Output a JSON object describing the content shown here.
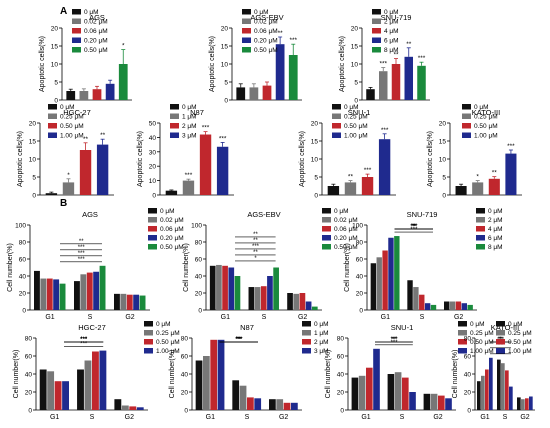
{
  "panels": {
    "A": "A",
    "B": "B"
  },
  "colors": [
    "#111111",
    "#777777",
    "#c0272d",
    "#1f2a8e",
    "#1a8a3c"
  ],
  "chart_data": [
    {
      "type": "bar",
      "id": "A-AGS",
      "title": "AGS",
      "ylabel": "Apoptotic cells(%)",
      "ylim": [
        0,
        20
      ],
      "yticks": [
        0,
        5,
        10,
        15,
        20
      ],
      "legend": [
        "0 μM",
        "0.02 μM",
        "0.06 μM",
        "0.20 μM",
        "0.50 μM"
      ],
      "legend_position": "left",
      "values": [
        2.5,
        2.5,
        3,
        4.5,
        10
      ],
      "errors": [
        0.5,
        0.6,
        0.8,
        1,
        4
      ],
      "sig": [
        "",
        "",
        "",
        "",
        "*"
      ]
    },
    {
      "type": "bar",
      "id": "A-AGS-EBV",
      "title": "AGS-EBV",
      "ylabel": "Apoptotic cells(%)",
      "ylim": [
        0,
        20
      ],
      "yticks": [
        0,
        5,
        10,
        15,
        20
      ],
      "legend": [
        "0 μM",
        "0.02 μM",
        "0.06 μM",
        "0.20 μM",
        "0.50 μM"
      ],
      "legend_position": "left",
      "values": [
        3.5,
        3.5,
        4,
        15.5,
        12.5
      ],
      "errors": [
        1,
        1,
        1,
        2,
        3
      ],
      "sig": [
        "",
        "",
        "",
        "**",
        "***"
      ]
    },
    {
      "type": "bar",
      "id": "A-SNU-719",
      "title": "SNU-719",
      "ylabel": "Apoptotic cells(%)",
      "ylim": [
        0,
        20
      ],
      "yticks": [
        0,
        5,
        10,
        15,
        20
      ],
      "legend": [
        "0 μM",
        "2 μM",
        "4 μM",
        "6 μM",
        "8 μM"
      ],
      "legend_position": "left",
      "values": [
        3,
        8,
        10,
        12,
        9.5
      ],
      "errors": [
        0.5,
        1,
        1.5,
        2.5,
        1
      ],
      "sig": [
        "",
        "***",
        "**",
        "**",
        "***"
      ]
    },
    {
      "type": "bar",
      "id": "A-HGC-27",
      "title": "HGC-27",
      "ylabel": "Apoptotic cells(%)",
      "ylim": [
        0,
        20
      ],
      "yticks": [
        0,
        5,
        10,
        15,
        20
      ],
      "legend": [
        "0 μM",
        "0.25 μM",
        "0.50 μM",
        "1.00 μM"
      ],
      "legend_position": "left",
      "values": [
        0.5,
        3.5,
        12.5,
        14
      ],
      "errors": [
        0.3,
        1,
        2,
        1.5
      ],
      "sig": [
        "",
        "*",
        "**",
        "**"
      ]
    },
    {
      "type": "bar",
      "id": "A-N87",
      "title": "N87",
      "ylabel": "Apoptotic cells(%)",
      "ylim": [
        0,
        50
      ],
      "yticks": [
        0,
        10,
        20,
        30,
        40,
        50
      ],
      "legend": [
        "0 μM",
        "1 μM",
        "2 μM",
        "3 μM"
      ],
      "legend_position": "left",
      "values": [
        3,
        10,
        42,
        33.5
      ],
      "errors": [
        0.5,
        1,
        2,
        3
      ],
      "sig": [
        "",
        "***",
        "***",
        "***"
      ]
    },
    {
      "type": "bar",
      "id": "A-SNU-1",
      "title": "SNU-1",
      "ylabel": "Apoptotic cells(%)",
      "ylim": [
        0,
        20
      ],
      "yticks": [
        0,
        5,
        10,
        15,
        20
      ],
      "legend": [
        "0 μM",
        "0.25 μM",
        "0.50 μM",
        "1.00 μM"
      ],
      "legend_position": "left",
      "values": [
        2.5,
        3.5,
        5,
        15.5
      ],
      "errors": [
        0.5,
        0.5,
        0.8,
        1.5
      ],
      "sig": [
        "",
        "**",
        "***",
        "***"
      ]
    },
    {
      "type": "bar",
      "id": "A-KATO-III",
      "title": "KATO-III",
      "ylabel": "Apoptotic cells(%)",
      "ylim": [
        0,
        20
      ],
      "yticks": [
        0,
        5,
        10,
        15,
        20
      ],
      "legend": [
        "0 μM",
        "0.25 μM",
        "0.50 μM",
        "1.00 μM"
      ],
      "legend_position": "left",
      "values": [
        2.5,
        3.5,
        4.5,
        11.5
      ],
      "errors": [
        0.5,
        0.5,
        0.6,
        1
      ],
      "sig": [
        "",
        "*",
        "**",
        "***"
      ]
    },
    {
      "type": "bar",
      "id": "B-AGS",
      "title": "AGS",
      "ylabel": "Cell number(%)",
      "ylim": [
        0,
        100
      ],
      "yticks": [
        0,
        20,
        40,
        60,
        80,
        100
      ],
      "categories": [
        "G1",
        "S",
        "G2"
      ],
      "legend": [
        "0 μM",
        "0.02 μM",
        "0.06 μM",
        "0.20 μM",
        "0.50 μM"
      ],
      "legend_position": "right",
      "values": [
        [
          46,
          37,
          37,
          36,
          31
        ],
        [
          34,
          42,
          44,
          45,
          52
        ],
        [
          19,
          19,
          18,
          18,
          17
        ]
      ],
      "sig_text": [
        "***",
        "***",
        "***",
        "**"
      ]
    },
    {
      "type": "bar",
      "id": "B-AGS-EBV",
      "title": "AGS-EBV",
      "ylabel": "Cell number(%)",
      "ylim": [
        0,
        100
      ],
      "yticks": [
        0,
        20,
        40,
        60,
        80,
        100
      ],
      "categories": [
        "G1",
        "S",
        "G2"
      ],
      "legend": [
        "0 μM",
        "0.02 μM",
        "0.06 μM",
        "0.20 μM",
        "0.50 μM"
      ],
      "legend_position": "right",
      "values": [
        [
          52,
          53,
          52,
          50,
          40
        ],
        [
          27,
          27,
          28,
          40,
          50
        ],
        [
          20,
          19,
          20,
          10,
          4
        ]
      ],
      "sig_text": [
        "*",
        "**",
        "***",
        "**",
        "**"
      ]
    },
    {
      "type": "bar",
      "id": "B-SNU-719",
      "title": "SNU-719",
      "ylabel": "Cell number(%)",
      "ylim": [
        0,
        100
      ],
      "yticks": [
        0,
        20,
        40,
        60,
        80,
        100
      ],
      "categories": [
        "G1",
        "S",
        "G2"
      ],
      "legend": [
        "0 μM",
        "2 μM",
        "4 μM",
        "6 μM",
        "8 μM"
      ],
      "legend_position": "right",
      "values": [
        [
          55,
          62,
          70,
          85,
          87
        ],
        [
          35,
          27,
          18,
          8,
          6
        ],
        [
          10,
          10,
          10,
          8,
          6
        ]
      ],
      "sig_text": [
        "***",
        "***",
        "**",
        "*",
        "***",
        "**",
        "*"
      ]
    },
    {
      "type": "bar",
      "id": "B-HGC-27",
      "title": "HGC-27",
      "ylabel": "Cell number(%)",
      "ylim": [
        0,
        80
      ],
      "yticks": [
        0,
        20,
        40,
        60,
        80
      ],
      "categories": [
        "G1",
        "S",
        "G2"
      ],
      "legend": [
        "0 μM",
        "0.25 μM",
        "0.50 μM",
        "1.00 μM"
      ],
      "legend_position": "right",
      "values": [
        [
          45,
          43,
          32,
          32
        ],
        [
          45,
          55,
          65,
          66
        ],
        [
          12,
          5,
          4,
          3
        ]
      ],
      "sig_text": [
        "***",
        "***",
        "***",
        "***",
        "***"
      ]
    },
    {
      "type": "bar",
      "id": "B-N87",
      "title": "N87",
      "ylabel": "Cell number(%)",
      "ylim": [
        0,
        80
      ],
      "yticks": [
        0,
        20,
        40,
        60,
        80
      ],
      "categories": [
        "G1",
        "S",
        "G2"
      ],
      "legend": [
        "0 μM",
        "1 μM",
        "2 μM",
        "3 μM"
      ],
      "legend_position": "right",
      "values": [
        [
          55,
          60,
          78,
          78
        ],
        [
          33,
          27,
          14,
          13
        ],
        [
          12,
          12,
          8,
          8
        ]
      ],
      "sig_text": [
        "***",
        "***",
        "**",
        "***",
        "***",
        "**"
      ]
    },
    {
      "type": "bar",
      "id": "B-SNU-1",
      "title": "SNU-1",
      "ylabel": "Cell number(%)",
      "ylim": [
        0,
        80
      ],
      "yticks": [
        0,
        20,
        40,
        60,
        80
      ],
      "categories": [
        "G1",
        "S",
        "G2"
      ],
      "legend": [
        "0 μM",
        "0.25 μM",
        "0.50 μM",
        "1.00 μM"
      ],
      "legend_position": "right",
      "values": [
        [
          36,
          38,
          47,
          68
        ],
        [
          40,
          42,
          36,
          20
        ],
        [
          18,
          18,
          16,
          13
        ]
      ],
      "sig_text": [
        "***",
        "**",
        "***",
        "***"
      ]
    },
    {
      "type": "bar",
      "id": "B-KATO-III",
      "title": "KATO-III",
      "ylabel": "Cell number(%)",
      "ylim": [
        0,
        80
      ],
      "yticks": [
        0,
        20,
        40,
        60,
        80
      ],
      "categories": [
        "G1",
        "S",
        "G2"
      ],
      "legend": [
        "0 μM",
        "0.25 μM",
        "0.50 μM",
        "1.00 μM"
      ],
      "legend_position": "right",
      "values": [
        [
          32,
          38,
          45,
          58
        ],
        [
          56,
          52,
          44,
          26
        ],
        [
          14,
          12,
          13,
          15
        ]
      ],
      "sig_text": [
        "***",
        "**",
        "*",
        "***",
        "**"
      ]
    }
  ]
}
